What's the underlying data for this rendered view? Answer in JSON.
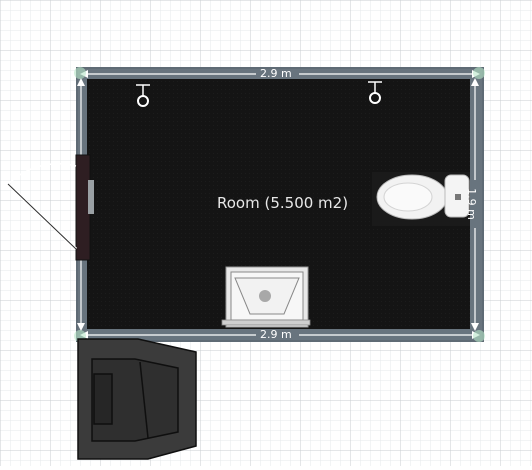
{
  "floorplan": {
    "room_label": "Room (5.500 m2)",
    "dimensions": {
      "top": "2.9 m",
      "bottom": "2.9 m",
      "right": "1.9 m"
    },
    "furniture": [
      "wall-light",
      "wall-light",
      "toilet",
      "sink",
      "door",
      "armchair"
    ],
    "colors": {
      "floor": "#141414",
      "wall": "#5f6b75",
      "grid": "#d9dde0",
      "dimension_line": "#ffffff"
    }
  }
}
